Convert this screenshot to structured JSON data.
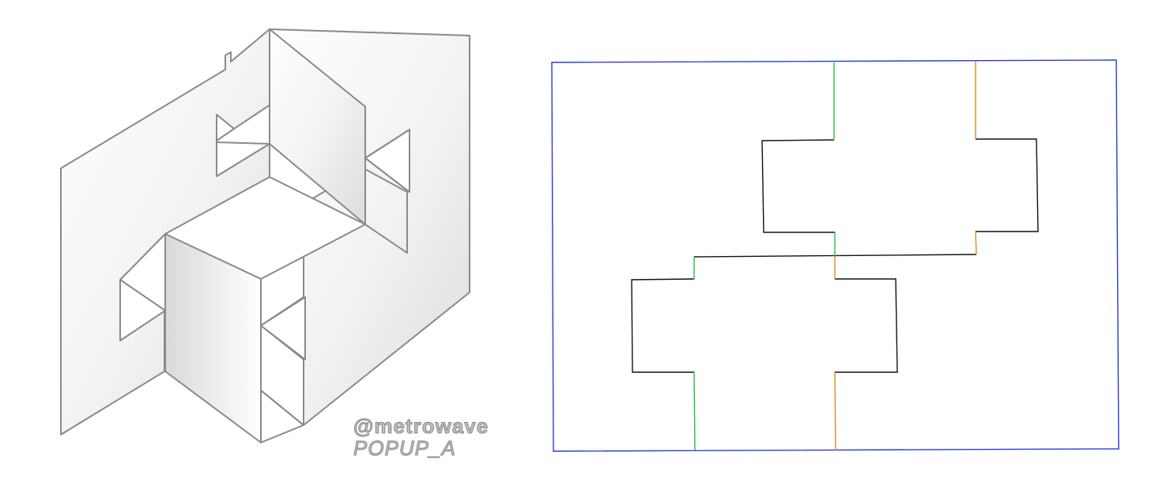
{
  "model_caption": {
    "handle": "@metrowave",
    "name": "POPUP_A"
  },
  "legend_colors": {
    "outline": "#2a3bd6",
    "cut": "#111111",
    "fold_green": "#22c23a",
    "fold_orange": "#e08a1a",
    "render_edge": "#8a8a8a"
  }
}
